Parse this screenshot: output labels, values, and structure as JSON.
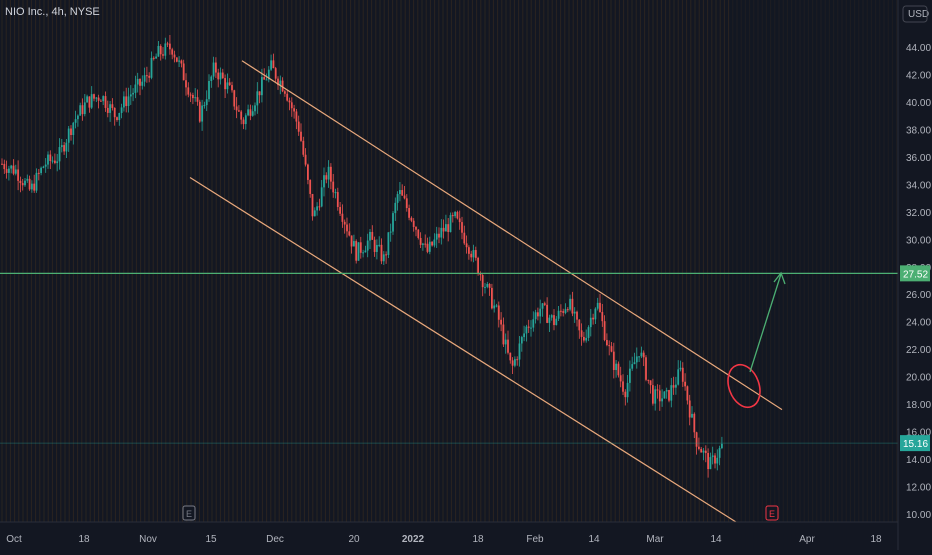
{
  "header": {
    "title": "NIO Inc., 4h, NYSE",
    "currency": "USD"
  },
  "colors": {
    "background": "#131722",
    "grid": "#3d2f1f",
    "up": "#26a69a",
    "down": "#ef5350",
    "channel": "#e8a87c",
    "level": "#4caf73",
    "projection": "#4caf73",
    "circle": "#f23645",
    "axis_text": "#b2b5be",
    "price_label_bg": "#2a2e39"
  },
  "chart_data": {
    "type": "candlestick",
    "symbol": "NIO Inc.",
    "interval": "4h",
    "exchange": "NYSE",
    "y_axis": {
      "unit": "USD",
      "ylim": [
        9.0,
        46.0
      ],
      "ticks": [
        "44.00",
        "42.00",
        "40.00",
        "38.00",
        "36.00",
        "34.00",
        "32.00",
        "30.00",
        "28.00",
        "26.00",
        "24.00",
        "22.00",
        "20.00",
        "18.00",
        "16.00",
        "14.00",
        "12.00",
        "10.00"
      ]
    },
    "x_axis": {
      "ticks": [
        "Oct",
        "18",
        "Nov",
        "15",
        "Dec",
        "20",
        "2022",
        "18",
        "Feb",
        "14",
        "Mar",
        "14",
        "Apr",
        "18"
      ]
    },
    "last_price": {
      "value": 15.16,
      "label": "15.16"
    },
    "horizontal_level": {
      "value": 27.52,
      "label": "27.52"
    },
    "close_path": [
      [
        "Oct",
        35.5
      ],
      [
        "",
        35.0
      ],
      [
        "",
        33.5
      ],
      [
        "",
        35.5
      ],
      [
        "18",
        36.0
      ],
      [
        "",
        38.5
      ],
      [
        "",
        40.0
      ],
      [
        "",
        40.5
      ],
      [
        "",
        39.0
      ],
      [
        "",
        40.5
      ],
      [
        "Nov",
        41.5
      ],
      [
        "",
        43.5
      ],
      [
        "",
        44.0
      ],
      [
        "",
        41.5
      ],
      [
        "",
        39.0
      ],
      [
        "15",
        42.5
      ],
      [
        "",
        41.0
      ],
      [
        "",
        38.5
      ],
      [
        "",
        40.5
      ],
      [
        "",
        42.5
      ],
      [
        "Dec",
        41.0
      ],
      [
        "",
        38.0
      ],
      [
        "",
        31.5
      ],
      [
        "",
        35.0
      ],
      [
        "",
        32.0
      ],
      [
        "",
        29.0
      ],
      [
        "20",
        30.0
      ],
      [
        "",
        28.5
      ],
      [
        "",
        33.5
      ],
      [
        "2022",
        31.5
      ],
      [
        "",
        29.0
      ],
      [
        "",
        30.5
      ],
      [
        "",
        31.5
      ],
      [
        "18",
        29.5
      ],
      [
        "",
        27.0
      ],
      [
        "",
        24.5
      ],
      [
        "",
        20.5
      ],
      [
        "Feb",
        23.5
      ],
      [
        "",
        25.0
      ],
      [
        "",
        24.0
      ],
      [
        "14",
        25.5
      ],
      [
        "",
        22.5
      ],
      [
        "",
        25.5
      ],
      [
        "",
        21.5
      ],
      [
        "Mar",
        19.0
      ],
      [
        "",
        22.0
      ],
      [
        "",
        18.5
      ],
      [
        "",
        18.5
      ],
      [
        "14",
        20.5
      ],
      [
        "",
        15.5
      ],
      [
        "",
        13.5
      ],
      [
        "",
        15.16
      ]
    ],
    "channel_upper": [
      [
        "Dec",
        43.0
      ],
      [
        "Mar",
        17.6
      ]
    ],
    "channel_lower": [
      [
        "Oct",
        34.5
      ],
      [
        "Mar",
        8.5
      ]
    ],
    "projection_arrow": [
      [
        "14",
        19.2
      ],
      [
        "Apr",
        27.6
      ]
    ],
    "earnings_markers": [
      {
        "label": "E",
        "x_tick": "15",
        "color": "#787b86"
      },
      {
        "label": "E",
        "x_tick": "Apr",
        "color": "#f23645"
      }
    ]
  }
}
